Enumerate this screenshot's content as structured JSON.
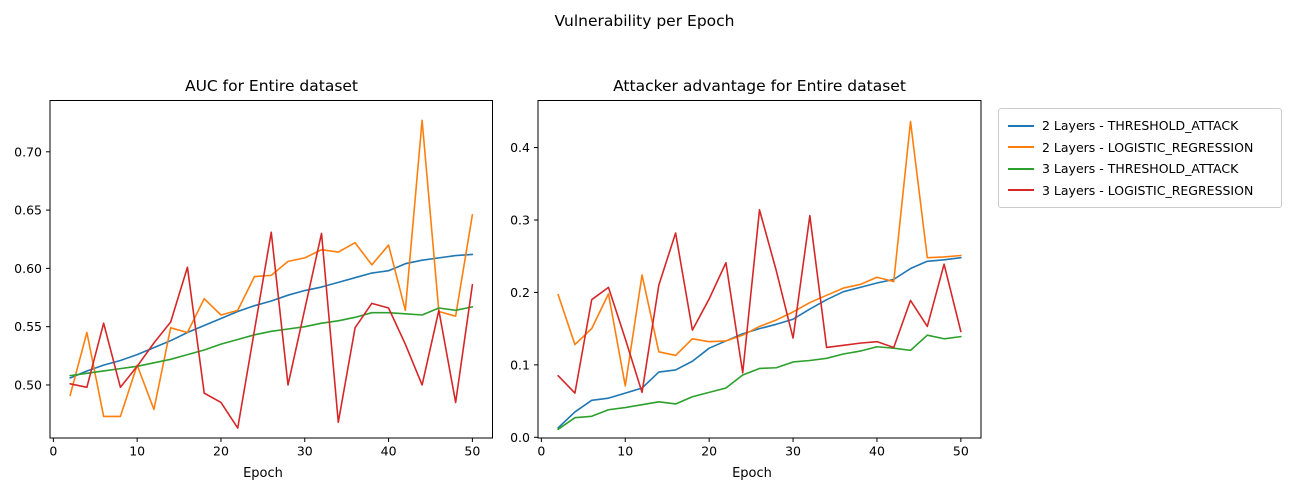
{
  "figure": {
    "suptitle": "Vulnerability per Epoch"
  },
  "legend": {
    "entries": [
      {
        "label": "2 Layers - THRESHOLD_ATTACK",
        "color": "#1f77b4"
      },
      {
        "label": "2 Layers - LOGISTIC_REGRESSION",
        "color": "#ff7f0e"
      },
      {
        "label": "3 Layers - THRESHOLD_ATTACK",
        "color": "#2ca02c"
      },
      {
        "label": "3 Layers - LOGISTIC_REGRESSION",
        "color": "#d62728"
      }
    ]
  },
  "chart_data": [
    {
      "type": "line",
      "title": "AUC for Entire dataset",
      "xlabel": "Epoch",
      "ylabel": "",
      "grid": false,
      "x": [
        2,
        4,
        6,
        8,
        10,
        12,
        14,
        16,
        18,
        20,
        22,
        24,
        26,
        28,
        30,
        32,
        34,
        36,
        38,
        40,
        42,
        44,
        46,
        48,
        50
      ],
      "xlim": [
        -0.4,
        52.4
      ],
      "ylim": [
        0.4545,
        0.744
      ],
      "xticks": [
        0,
        10,
        20,
        30,
        40,
        50
      ],
      "xtick_labels": [
        "0",
        "10",
        "20",
        "30",
        "40",
        "50"
      ],
      "yticks": [
        0.5,
        0.55,
        0.6,
        0.65,
        0.7
      ],
      "ytick_labels": [
        "0.50",
        "0.55",
        "0.60",
        "0.65",
        "0.70"
      ],
      "series": [
        {
          "name": "2 Layers - THRESHOLD_ATTACK",
          "color": "#1f77b4",
          "values": [
            0.506,
            0.512,
            0.517,
            0.521,
            0.526,
            0.532,
            0.538,
            0.545,
            0.551,
            0.557,
            0.563,
            0.568,
            0.572,
            0.577,
            0.581,
            0.584,
            0.588,
            0.592,
            0.596,
            0.598,
            0.604,
            0.607,
            0.609,
            0.611,
            0.612
          ]
        },
        {
          "name": "2 Layers - LOGISTIC_REGRESSION",
          "color": "#ff7f0e",
          "values": [
            0.491,
            0.545,
            0.473,
            0.473,
            0.517,
            0.479,
            0.549,
            0.545,
            0.574,
            0.56,
            0.564,
            0.593,
            0.594,
            0.606,
            0.609,
            0.616,
            0.614,
            0.622,
            0.603,
            0.62,
            0.564,
            0.727,
            0.563,
            0.559,
            0.646
          ]
        },
        {
          "name": "3 Layers - THRESHOLD_ATTACK",
          "color": "#2ca02c",
          "values": [
            0.508,
            0.51,
            0.512,
            0.514,
            0.516,
            0.519,
            0.522,
            0.526,
            0.53,
            0.535,
            0.539,
            0.543,
            0.546,
            0.548,
            0.55,
            0.553,
            0.555,
            0.558,
            0.562,
            0.562,
            0.561,
            0.56,
            0.566,
            0.564,
            0.567
          ]
        },
        {
          "name": "3 Layers - LOGISTIC_REGRESSION",
          "color": "#d62728",
          "values": [
            0.501,
            0.498,
            0.553,
            0.498,
            0.516,
            0.536,
            0.554,
            0.601,
            0.493,
            0.485,
            0.463,
            0.547,
            0.631,
            0.5,
            0.565,
            0.63,
            0.468,
            0.549,
            0.57,
            0.566,
            0.535,
            0.5,
            0.564,
            0.485,
            0.586
          ]
        }
      ]
    },
    {
      "type": "line",
      "title": "Attacker advantage for Entire dataset",
      "xlabel": "Epoch",
      "ylabel": "",
      "grid": false,
      "x": [
        2,
        4,
        6,
        8,
        10,
        12,
        14,
        16,
        18,
        20,
        22,
        24,
        26,
        28,
        30,
        32,
        34,
        36,
        38,
        40,
        42,
        44,
        46,
        48,
        50
      ],
      "xlim": [
        -0.4,
        52.4
      ],
      "ylim": [
        -0.001,
        0.465
      ],
      "xticks": [
        0,
        10,
        20,
        30,
        40,
        50
      ],
      "xtick_labels": [
        "0",
        "10",
        "20",
        "30",
        "40",
        "50"
      ],
      "yticks": [
        0.0,
        0.1,
        0.2,
        0.3,
        0.4
      ],
      "ytick_labels": [
        "0.0",
        "0.1",
        "0.2",
        "0.3",
        "0.4"
      ],
      "series": [
        {
          "name": "2 Layers - THRESHOLD_ATTACK",
          "color": "#1f77b4",
          "values": [
            0.013,
            0.035,
            0.051,
            0.054,
            0.061,
            0.068,
            0.09,
            0.093,
            0.105,
            0.123,
            0.133,
            0.143,
            0.15,
            0.156,
            0.163,
            0.177,
            0.19,
            0.201,
            0.207,
            0.213,
            0.218,
            0.233,
            0.243,
            0.245,
            0.248
          ]
        },
        {
          "name": "2 Layers - LOGISTIC_REGRESSION",
          "color": "#ff7f0e",
          "values": [
            0.197,
            0.128,
            0.15,
            0.198,
            0.071,
            0.224,
            0.118,
            0.113,
            0.136,
            0.132,
            0.133,
            0.141,
            0.153,
            0.162,
            0.173,
            0.186,
            0.196,
            0.206,
            0.211,
            0.221,
            0.215,
            0.436,
            0.248,
            0.249,
            0.251
          ]
        },
        {
          "name": "3 Layers - THRESHOLD_ATTACK",
          "color": "#2ca02c",
          "values": [
            0.011,
            0.027,
            0.029,
            0.038,
            0.041,
            0.045,
            0.049,
            0.046,
            0.056,
            0.062,
            0.068,
            0.086,
            0.095,
            0.096,
            0.104,
            0.106,
            0.109,
            0.115,
            0.119,
            0.125,
            0.123,
            0.12,
            0.141,
            0.136,
            0.139
          ]
        },
        {
          "name": "3 Layers - LOGISTIC_REGRESSION",
          "color": "#d62728",
          "values": [
            0.085,
            0.061,
            0.19,
            0.207,
            0.136,
            0.062,
            0.21,
            0.282,
            0.148,
            0.191,
            0.241,
            0.089,
            0.314,
            0.23,
            0.137,
            0.306,
            0.124,
            0.127,
            0.13,
            0.132,
            0.124,
            0.189,
            0.153,
            0.239,
            0.146
          ]
        }
      ]
    }
  ]
}
